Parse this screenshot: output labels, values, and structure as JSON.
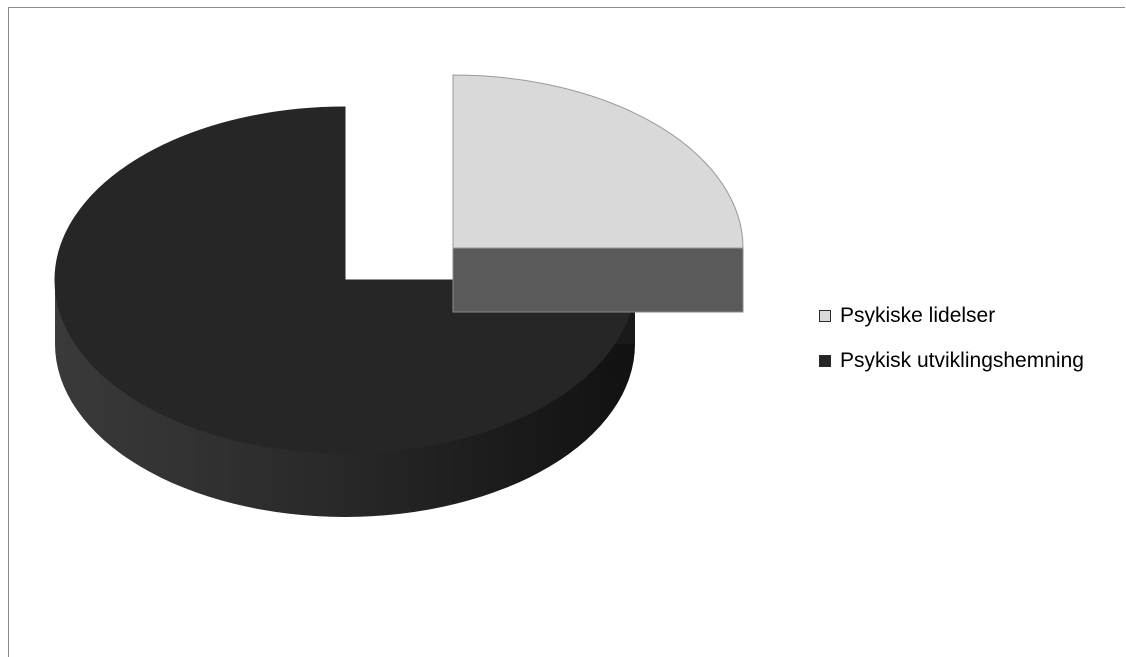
{
  "chart_data": {
    "type": "pie",
    "style": "3d-exploded",
    "title": "",
    "slices": [
      {
        "label": "Psykiske lidelser",
        "value": 25,
        "color": "#d9d9d9",
        "side_color": "#5a5a5a",
        "exploded": true
      },
      {
        "label": "Psykisk utviklingshemning",
        "value": 75,
        "color": "#262626",
        "side_color": "#1a1a1a",
        "exploded": false
      }
    ],
    "legend": {
      "placement": "right",
      "entries": [
        "Psykiske lidelser",
        "Psykisk utviklingshemning"
      ]
    }
  }
}
